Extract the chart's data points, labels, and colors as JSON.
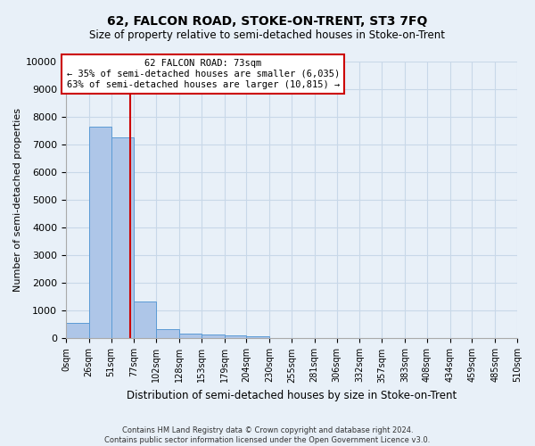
{
  "title": "62, FALCON ROAD, STOKE-ON-TRENT, ST3 7FQ",
  "subtitle": "Size of property relative to semi-detached houses in Stoke-on-Trent",
  "xlabel": "Distribution of semi-detached houses by size in Stoke-on-Trent",
  "ylabel": "Number of semi-detached properties",
  "footer_line1": "Contains HM Land Registry data © Crown copyright and database right 2024.",
  "footer_line2": "Contains public sector information licensed under the Open Government Licence v3.0.",
  "annotation_title": "62 FALCON ROAD: 73sqm",
  "annotation_line1": "← 35% of semi-detached houses are smaller (6,035)",
  "annotation_line2": "63% of semi-detached houses are larger (10,815) →",
  "property_size": 73,
  "bin_edges": [
    0,
    26,
    51,
    77,
    102,
    128,
    153,
    179,
    204,
    230,
    255,
    281,
    306,
    332,
    357,
    383,
    408,
    434,
    459,
    485,
    510
  ],
  "bar_heights": [
    550,
    7650,
    7250,
    1350,
    350,
    175,
    130,
    110,
    75,
    0,
    0,
    0,
    0,
    0,
    0,
    0,
    0,
    0,
    0,
    0
  ],
  "bar_color": "#aec6e8",
  "bar_edge_color": "#5b9bd5",
  "vline_color": "#cc0000",
  "vline_x": 73,
  "ylim": [
    0,
    10000
  ],
  "yticks": [
    0,
    1000,
    2000,
    3000,
    4000,
    5000,
    6000,
    7000,
    8000,
    9000,
    10000
  ],
  "annotation_box_color": "white",
  "annotation_box_edge": "#cc0000",
  "grid_color": "#c8d8e8",
  "bg_color": "#e8f0f8",
  "title_fontsize": 10,
  "subtitle_fontsize": 8.5
}
